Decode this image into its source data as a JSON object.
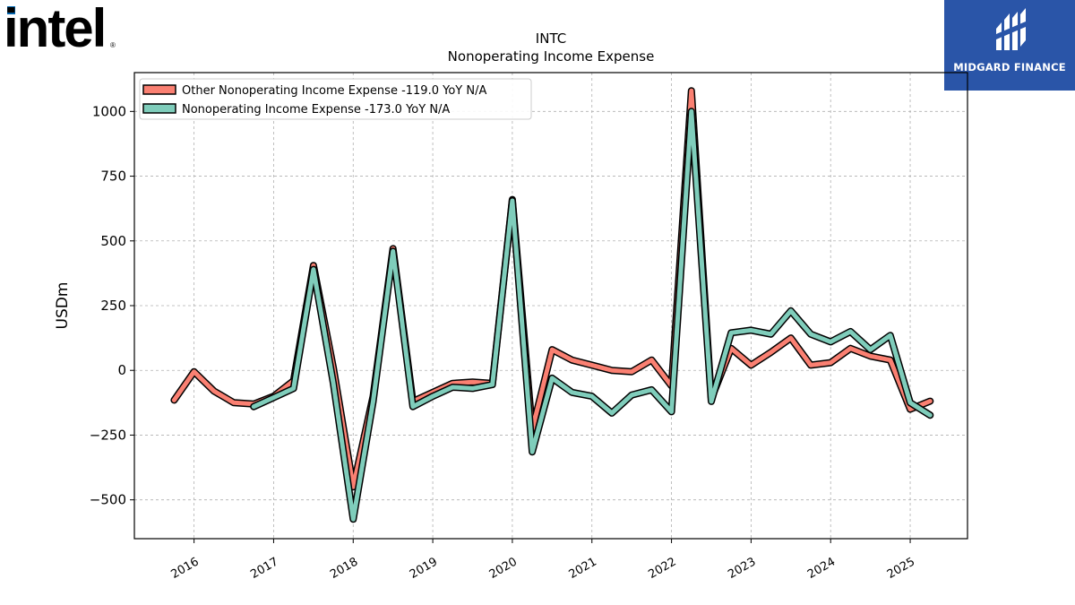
{
  "logos": {
    "company": "intel",
    "company_color": "#000000",
    "company_accent": "#0068b5",
    "publisher": "MIDGARD FINANCE",
    "publisher_bg": "#2a55a8"
  },
  "chart_data": {
    "type": "line",
    "title": "INTC",
    "subtitle": "Nonoperating Income Expense",
    "ylabel": "USDm",
    "xlabel": "",
    "ylim": [
      -650,
      1150
    ],
    "yticks": [
      -500,
      -250,
      0,
      250,
      500,
      750,
      1000
    ],
    "ytick_labels": [
      "−500",
      "−250",
      "0",
      "250",
      "500",
      "750",
      "1000"
    ],
    "xlim": [
      2015.25,
      2025.72
    ],
    "xticks": [
      2016,
      2017,
      2018,
      2019,
      2020,
      2021,
      2022,
      2023,
      2024,
      2025
    ],
    "xtick_labels": [
      "2016",
      "2017",
      "2018",
      "2019",
      "2020",
      "2021",
      "2022",
      "2023",
      "2024",
      "2025"
    ],
    "grid": true,
    "legend_position": "top-left",
    "series": [
      {
        "name": "Other Nonoperating Income Expense  -119.0 YoY N/A",
        "color": "#fa8072",
        "x": [
          2015.75,
          2016.0,
          2016.25,
          2016.5,
          2016.75,
          2017.0,
          2017.25,
          2017.5,
          2017.75,
          2018.0,
          2018.25,
          2018.5,
          2018.75,
          2019.0,
          2019.25,
          2019.5,
          2019.75,
          2020.0,
          2020.25,
          2020.5,
          2020.75,
          2021.0,
          2021.25,
          2021.5,
          2021.75,
          2022.0,
          2022.25,
          2022.5,
          2022.75,
          2023.0,
          2023.25,
          2023.5,
          2023.75,
          2024.0,
          2024.25,
          2024.5,
          2024.75,
          2025.0,
          2025.25
        ],
        "values": [
          -115,
          -5,
          -80,
          -125,
          -130,
          -100,
          -40,
          405,
          10,
          -450,
          -100,
          470,
          -120,
          -85,
          -50,
          -45,
          -50,
          660,
          -230,
          80,
          40,
          20,
          0,
          -5,
          40,
          -60,
          1080,
          -110,
          85,
          20,
          70,
          125,
          20,
          30,
          85,
          55,
          40,
          -150,
          -119
        ]
      },
      {
        "name": "Nonoperating Income Expense  -173.0 YoY N/A",
        "color": "#7fcdbb",
        "x": [
          2016.75,
          2017.0,
          2017.25,
          2017.5,
          2017.75,
          2018.0,
          2018.25,
          2018.5,
          2018.75,
          2019.0,
          2019.25,
          2019.5,
          2019.75,
          2020.0,
          2020.25,
          2020.5,
          2020.75,
          2021.0,
          2021.25,
          2021.5,
          2021.75,
          2022.0,
          2022.25,
          2022.5,
          2022.75,
          2023.0,
          2023.25,
          2023.5,
          2023.75,
          2024.0,
          2024.25,
          2024.5,
          2024.75,
          2025.0,
          2025.25
        ],
        "values": [
          -140,
          -105,
          -70,
          390,
          -50,
          -575,
          -120,
          460,
          -140,
          -100,
          -65,
          -70,
          -55,
          655,
          -315,
          -30,
          -85,
          -100,
          -165,
          -95,
          -75,
          -160,
          1000,
          -120,
          145,
          155,
          140,
          230,
          140,
          110,
          150,
          80,
          135,
          -125,
          -173
        ]
      }
    ]
  }
}
